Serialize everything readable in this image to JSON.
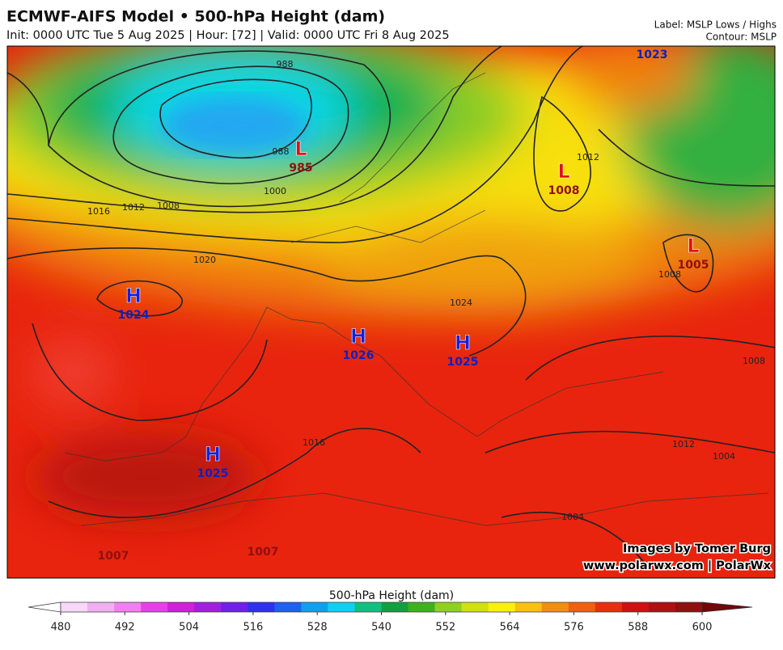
{
  "header": {
    "title": "ECMWF-AIFS Model • 500-hPa Height (dam)",
    "subtitle": "Init: 0000 UTC Tue 5 Aug 2025 | Hour: [72] | Valid: 0000 UTC Fri 8 Aug 2025",
    "label_note": "Label: MSLP Lows / Highs",
    "contour_note": "Contour: MSLP"
  },
  "pressure_centers": [
    {
      "letter": "L",
      "value": 985
    },
    {
      "letter": "L",
      "value": 1008
    },
    {
      "letter": "L",
      "value": 1005
    },
    {
      "letter": "H",
      "value": 1024
    },
    {
      "letter": "H",
      "value": 1026
    },
    {
      "letter": "H",
      "value": 1025
    },
    {
      "letter": "H",
      "value": 1025
    }
  ],
  "edge_center_labels": [
    1023,
    1007,
    1007
  ],
  "contour_labels": [
    988,
    988,
    1000,
    1008,
    1012,
    1016,
    1020,
    1012,
    1008,
    1024,
    1016,
    1012,
    1008,
    1004,
    1004
  ],
  "credits": [
    "Images by Tomer Burg",
    "www.polarwx.com | PolarWx"
  ],
  "colorbar": {
    "title": "500-hPa Height (dam)",
    "ticks": [
      480,
      492,
      504,
      516,
      528,
      540,
      552,
      564,
      576,
      588,
      600
    ]
  }
}
